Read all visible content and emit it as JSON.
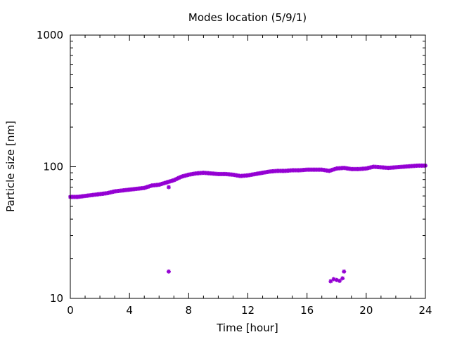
{
  "chart_data": {
    "type": "scatter",
    "title": "Modes location (5/9/1)",
    "xlabel": "Time [hour]",
    "ylabel": "Particle size [nm]",
    "xlim": [
      0,
      24
    ],
    "ylim": [
      10,
      1000
    ],
    "yscale": "log",
    "grid": false,
    "legend": "none",
    "x_ticks": [
      0,
      4,
      8,
      12,
      16,
      20,
      24
    ],
    "x_tick_labels": [
      "0",
      "4",
      "8",
      "12",
      "16",
      "20",
      "24"
    ],
    "y_ticks": [
      10,
      100,
      1000
    ],
    "y_tick_labels": [
      "10",
      "100",
      "1000"
    ],
    "marker_color": "#9400d3",
    "series": [
      {
        "points": [
          [
            0.0,
            59
          ],
          [
            0.5,
            59
          ],
          [
            1.0,
            60
          ],
          [
            1.5,
            61
          ],
          [
            2.0,
            62
          ],
          [
            2.5,
            63
          ],
          [
            3.0,
            65
          ],
          [
            3.5,
            66
          ],
          [
            4.0,
            67
          ],
          [
            4.5,
            68
          ],
          [
            5.0,
            69
          ],
          [
            5.5,
            72
          ],
          [
            6.0,
            73
          ],
          [
            6.5,
            76
          ],
          [
            7.0,
            79
          ],
          [
            7.5,
            84
          ],
          [
            8.0,
            87
          ],
          [
            8.5,
            89
          ],
          [
            9.0,
            90
          ],
          [
            9.5,
            89
          ],
          [
            10.0,
            88
          ],
          [
            10.5,
            88
          ],
          [
            11.0,
            87
          ],
          [
            11.5,
            85
          ],
          [
            12.0,
            86
          ],
          [
            12.5,
            88
          ],
          [
            13.0,
            90
          ],
          [
            13.5,
            92
          ],
          [
            14.0,
            93
          ],
          [
            14.5,
            93
          ],
          [
            15.0,
            94
          ],
          [
            15.5,
            94
          ],
          [
            16.0,
            95
          ],
          [
            16.5,
            95
          ],
          [
            17.0,
            95
          ],
          [
            17.5,
            93
          ],
          [
            18.0,
            97
          ],
          [
            18.5,
            98
          ],
          [
            19.0,
            96
          ],
          [
            19.5,
            96
          ],
          [
            20.0,
            97
          ],
          [
            20.5,
            100
          ],
          [
            21.0,
            99
          ],
          [
            21.5,
            98
          ],
          [
            22.0,
            99
          ],
          [
            22.5,
            100
          ],
          [
            23.0,
            101
          ],
          [
            23.5,
            102
          ],
          [
            24.0,
            102
          ],
          [
            6.65,
            70
          ],
          [
            6.65,
            16
          ],
          [
            17.6,
            13.5
          ],
          [
            17.8,
            14
          ],
          [
            18.0,
            13.8
          ],
          [
            18.2,
            13.6
          ],
          [
            18.4,
            14.2
          ],
          [
            18.5,
            16
          ]
        ]
      }
    ]
  }
}
